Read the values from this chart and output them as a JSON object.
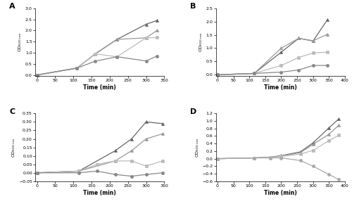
{
  "subplots": {
    "A": {
      "label": "A",
      "series": [
        {
          "x": [
            0,
            110,
            160,
            220,
            300,
            330
          ],
          "y": [
            0,
            0.31,
            0.95,
            1.6,
            2.28,
            2.45
          ],
          "color": "#666666",
          "marker": "^",
          "markersize": 3,
          "lw": 0.9
        },
        {
          "x": [
            0,
            110,
            160,
            220,
            300,
            330
          ],
          "y": [
            0,
            0.31,
            0.95,
            1.6,
            1.67,
            2.0
          ],
          "color": "#999999",
          "marker": "^",
          "markersize": 3,
          "lw": 0.9
        },
        {
          "x": [
            0,
            110,
            160,
            220,
            300,
            330
          ],
          "y": [
            0,
            0.31,
            0.95,
            0.82,
            1.67,
            1.68
          ],
          "color": "#bbbbbb",
          "marker": "s",
          "markersize": 3,
          "lw": 0.9
        },
        {
          "x": [
            0,
            110,
            160,
            220,
            300,
            330
          ],
          "y": [
            0,
            0.31,
            0.62,
            0.82,
            0.63,
            0.85
          ],
          "color": "#888888",
          "marker": "o",
          "markersize": 3,
          "lw": 0.9
        }
      ],
      "ylim": [
        -0.05,
        3.0
      ],
      "yticks": [
        0,
        0.5,
        1.0,
        1.5,
        2.0,
        2.5,
        3.0
      ],
      "xlim": [
        -5,
        350
      ],
      "xticks": [
        0,
        50,
        100,
        150,
        200,
        250,
        300,
        350
      ],
      "ylabel": "OD$_{600\\ nm}$",
      "xlabel": "Time (min)"
    },
    "B": {
      "label": "B",
      "series": [
        {
          "x": [
            0,
            115,
            200,
            255,
            300,
            345
          ],
          "y": [
            0,
            0.05,
            0.85,
            1.37,
            1.27,
            2.07
          ],
          "color": "#666666",
          "marker": "^",
          "markersize": 3,
          "lw": 0.9
        },
        {
          "x": [
            0,
            115,
            200,
            255,
            300,
            345
          ],
          "y": [
            0,
            0.05,
            1.0,
            1.37,
            1.28,
            1.52
          ],
          "color": "#999999",
          "marker": "^",
          "markersize": 3,
          "lw": 0.9
        },
        {
          "x": [
            0,
            115,
            200,
            255,
            300,
            345
          ],
          "y": [
            0,
            0.05,
            0.35,
            0.65,
            0.82,
            0.85
          ],
          "color": "#bbbbbb",
          "marker": "s",
          "markersize": 3,
          "lw": 0.9
        },
        {
          "x": [
            0,
            115,
            200,
            255,
            300,
            345
          ],
          "y": [
            0,
            0.05,
            0.1,
            0.18,
            0.35,
            0.35
          ],
          "color": "#888888",
          "marker": "o",
          "markersize": 3,
          "lw": 0.9
        }
      ],
      "ylim": [
        -0.05,
        2.5
      ],
      "yticks": [
        0,
        0.5,
        1.0,
        1.5,
        2.0,
        2.5
      ],
      "xlim": [
        -5,
        400
      ],
      "xticks": [
        0,
        50,
        100,
        150,
        200,
        250,
        300,
        350,
        400
      ],
      "ylabel": "OD$_{600\\ nm}$",
      "xlabel": "Time (min)"
    },
    "C": {
      "label": "C",
      "series": [
        {
          "x": [
            0,
            115,
            215,
            260,
            300,
            345
          ],
          "y": [
            0,
            0.01,
            0.13,
            0.2,
            0.3,
            0.29
          ],
          "color": "#666666",
          "marker": "^",
          "markersize": 3,
          "lw": 0.9
        },
        {
          "x": [
            0,
            115,
            215,
            260,
            300,
            345
          ],
          "y": [
            0,
            0.01,
            0.07,
            0.13,
            0.2,
            0.23
          ],
          "color": "#999999",
          "marker": "^",
          "markersize": 3,
          "lw": 0.9
        },
        {
          "x": [
            0,
            115,
            165,
            215,
            260,
            300,
            345
          ],
          "y": [
            0,
            0.01,
            0.05,
            0.07,
            0.07,
            0.04,
            0.07
          ],
          "color": "#bbbbbb",
          "marker": "s",
          "markersize": 3,
          "lw": 0.9
        },
        {
          "x": [
            0,
            115,
            165,
            215,
            260,
            300,
            345
          ],
          "y": [
            0,
            0.0,
            0.01,
            -0.01,
            -0.02,
            -0.01,
            0.0
          ],
          "color": "#888888",
          "marker": "o",
          "markersize": 3,
          "lw": 0.9
        }
      ],
      "ylim": [
        -0.05,
        0.35
      ],
      "yticks": [
        -0.05,
        0,
        0.05,
        0.1,
        0.15,
        0.2,
        0.25,
        0.3,
        0.35
      ],
      "xlim": [
        -5,
        350
      ],
      "xticks": [
        0,
        50,
        100,
        150,
        200,
        250,
        300,
        350
      ],
      "ylabel": "OD$_{600\\ nm}$",
      "xlabel": "Time (min)"
    },
    "D": {
      "label": "D",
      "series": [
        {
          "x": [
            0,
            115,
            165,
            200,
            260,
            300,
            350,
            380
          ],
          "y": [
            0,
            0.02,
            0.04,
            0.08,
            0.18,
            0.42,
            0.82,
            1.05
          ],
          "color": "#666666",
          "marker": "^",
          "markersize": 3,
          "lw": 0.9
        },
        {
          "x": [
            0,
            115,
            165,
            200,
            260,
            300,
            350,
            380
          ],
          "y": [
            0,
            0.02,
            0.04,
            0.07,
            0.16,
            0.38,
            0.65,
            0.88
          ],
          "color": "#999999",
          "marker": "^",
          "markersize": 3,
          "lw": 0.9
        },
        {
          "x": [
            0,
            115,
            165,
            200,
            260,
            300,
            350,
            380
          ],
          "y": [
            0,
            0.02,
            0.03,
            0.06,
            0.12,
            0.22,
            0.48,
            0.62
          ],
          "color": "#bbbbbb",
          "marker": "s",
          "markersize": 3,
          "lw": 0.9
        },
        {
          "x": [
            0,
            115,
            165,
            200,
            260,
            300,
            350,
            380
          ],
          "y": [
            0,
            0.02,
            0.02,
            0.02,
            -0.05,
            -0.2,
            -0.42,
            -0.55
          ],
          "color": "#aaaaaa",
          "marker": "o",
          "markersize": 3,
          "lw": 0.9
        }
      ],
      "ylim": [
        -0.6,
        1.2
      ],
      "yticks": [
        -0.6,
        -0.4,
        -0.2,
        0,
        0.2,
        0.4,
        0.6,
        0.8,
        1.0,
        1.2
      ],
      "xlim": [
        -5,
        400
      ],
      "xticks": [
        0,
        50,
        100,
        150,
        200,
        250,
        300,
        350,
        400
      ],
      "ylabel": "OD$_{600\\ nm}$",
      "xlabel": "Time (min)"
    }
  }
}
